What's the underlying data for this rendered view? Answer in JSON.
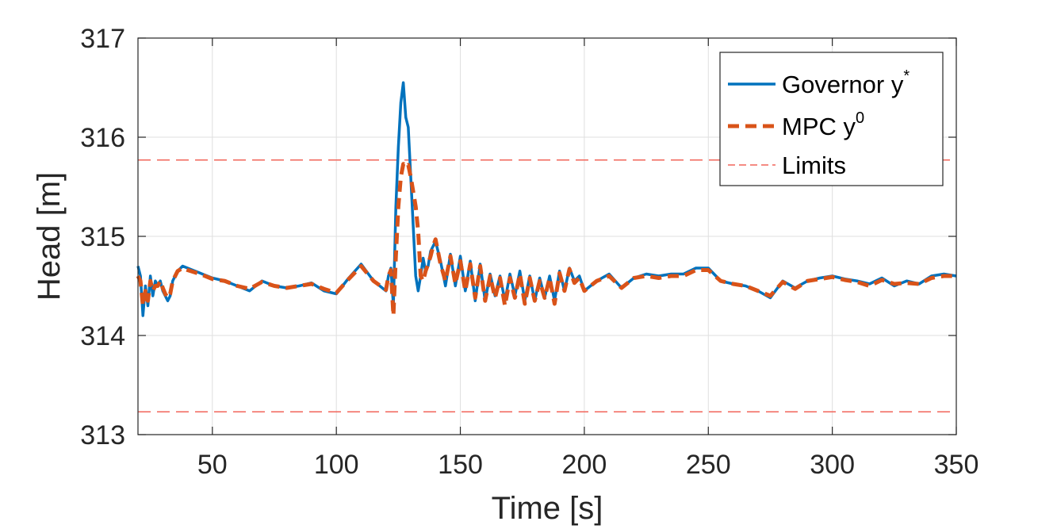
{
  "chart_data": {
    "type": "line",
    "xlabel": "Time [s]",
    "ylabel": "Head [m]",
    "xlim": [
      20,
      350
    ],
    "ylim": [
      313,
      317
    ],
    "xticks": [
      50,
      100,
      150,
      200,
      250,
      300,
      350
    ],
    "yticks": [
      313,
      314,
      315,
      316,
      317
    ],
    "grid": true,
    "legend_position": "top-right",
    "limits": {
      "name": "Limits",
      "upper": 315.77,
      "lower": 313.23,
      "color": "#f2655a"
    },
    "series": [
      {
        "name": "Governor",
        "legend_base": "Governor y",
        "legend_sup": "*",
        "color": "#0072bd",
        "x": [
          20,
          21,
          22,
          23,
          24,
          25,
          26,
          27,
          28,
          29,
          30,
          31,
          32,
          33,
          34,
          36,
          38,
          40,
          45,
          50,
          55,
          60,
          65,
          70,
          75,
          80,
          85,
          90,
          95,
          100,
          105,
          110,
          115,
          120,
          121,
          122,
          123,
          124,
          125,
          126,
          127,
          128,
          129,
          130,
          131,
          132,
          133,
          134,
          135,
          136,
          137,
          138,
          139,
          140,
          142,
          144,
          146,
          148,
          150,
          152,
          154,
          156,
          158,
          160,
          162,
          164,
          166,
          168,
          170,
          172,
          174,
          176,
          178,
          180,
          182,
          184,
          186,
          188,
          190,
          192,
          194,
          196,
          198,
          200,
          205,
          210,
          215,
          220,
          225,
          230,
          235,
          240,
          245,
          250,
          255,
          260,
          265,
          270,
          275,
          280,
          285,
          290,
          295,
          300,
          305,
          310,
          315,
          320,
          325,
          330,
          335,
          340,
          345,
          350
        ],
        "y": [
          314.7,
          314.6,
          314.2,
          314.5,
          314.3,
          314.6,
          314.4,
          314.55,
          314.5,
          314.55,
          314.45,
          314.4,
          314.35,
          314.4,
          314.55,
          314.65,
          314.7,
          314.68,
          314.63,
          314.58,
          314.55,
          314.5,
          314.45,
          314.55,
          314.5,
          314.48,
          314.5,
          314.53,
          314.45,
          314.42,
          314.58,
          314.72,
          314.55,
          314.45,
          314.6,
          314.68,
          314.3,
          315.3,
          315.9,
          316.35,
          316.55,
          316.2,
          316.1,
          315.6,
          315.1,
          314.6,
          314.45,
          314.6,
          314.78,
          314.65,
          314.7,
          314.85,
          314.9,
          314.95,
          314.75,
          314.5,
          314.82,
          314.5,
          314.8,
          314.45,
          314.75,
          314.35,
          314.72,
          314.35,
          314.62,
          314.4,
          314.6,
          314.35,
          314.62,
          314.4,
          314.65,
          314.35,
          314.6,
          314.35,
          314.58,
          314.38,
          314.6,
          314.35,
          314.65,
          314.45,
          314.68,
          314.55,
          314.6,
          314.45,
          314.55,
          314.62,
          314.48,
          314.58,
          314.62,
          314.6,
          314.62,
          314.62,
          314.68,
          314.68,
          314.55,
          314.52,
          314.5,
          314.45,
          314.38,
          314.55,
          314.48,
          314.55,
          314.58,
          314.6,
          314.57,
          314.55,
          314.52,
          314.58,
          314.5,
          314.55,
          314.52,
          314.6,
          314.62,
          314.6
        ]
      },
      {
        "name": "MPC",
        "legend_base": "MPC y",
        "legend_sup": "0",
        "color": "#d95319",
        "x": [
          20,
          21,
          22,
          23,
          24,
          25,
          26,
          27,
          28,
          29,
          30,
          31,
          32,
          33,
          34,
          36,
          38,
          40,
          45,
          50,
          55,
          60,
          65,
          70,
          75,
          80,
          85,
          90,
          95,
          100,
          105,
          110,
          115,
          120,
          121,
          122,
          123,
          124,
          125,
          126,
          127,
          128,
          129,
          130,
          131,
          132,
          133,
          134,
          135,
          136,
          137,
          138,
          139,
          140,
          142,
          144,
          146,
          148,
          150,
          152,
          154,
          156,
          158,
          160,
          162,
          164,
          166,
          168,
          170,
          172,
          174,
          176,
          178,
          180,
          182,
          184,
          186,
          188,
          190,
          192,
          194,
          196,
          198,
          200,
          205,
          210,
          215,
          220,
          225,
          230,
          235,
          240,
          245,
          250,
          255,
          260,
          265,
          270,
          275,
          280,
          285,
          290,
          295,
          300,
          305,
          310,
          315,
          320,
          325,
          330,
          335,
          340,
          345,
          350
        ],
        "y": [
          314.6,
          314.55,
          314.3,
          314.45,
          314.35,
          314.55,
          314.45,
          314.5,
          314.5,
          314.55,
          314.48,
          314.42,
          314.38,
          314.42,
          314.55,
          314.65,
          314.68,
          314.66,
          314.62,
          314.57,
          314.55,
          314.5,
          314.47,
          314.54,
          314.5,
          314.48,
          314.5,
          314.52,
          314.47,
          314.43,
          314.57,
          314.7,
          314.55,
          314.46,
          314.6,
          314.66,
          314.2,
          314.8,
          315.3,
          315.6,
          315.73,
          315.7,
          315.72,
          315.6,
          315.45,
          315.3,
          315.05,
          314.6,
          314.55,
          314.65,
          314.72,
          314.8,
          314.9,
          314.97,
          314.72,
          314.55,
          314.8,
          314.52,
          314.75,
          314.45,
          314.72,
          314.38,
          314.7,
          314.35,
          314.6,
          314.38,
          314.58,
          314.3,
          314.58,
          314.38,
          314.62,
          314.32,
          314.58,
          314.35,
          314.55,
          314.38,
          314.58,
          314.32,
          314.63,
          314.45,
          314.67,
          314.53,
          314.58,
          314.45,
          314.55,
          314.6,
          314.48,
          314.58,
          314.6,
          314.58,
          314.6,
          314.6,
          314.66,
          314.66,
          314.55,
          314.52,
          314.5,
          314.45,
          314.4,
          314.54,
          314.47,
          314.55,
          314.57,
          314.59,
          314.56,
          314.54,
          314.5,
          314.56,
          314.52,
          314.53,
          314.52,
          314.58,
          314.6,
          314.6
        ]
      }
    ]
  }
}
